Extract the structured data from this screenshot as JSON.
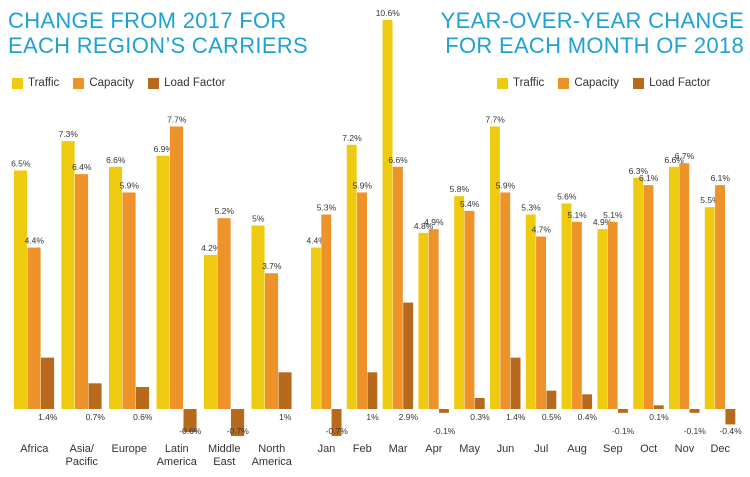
{
  "colors": {
    "traffic": "#eecb10",
    "capacity": "#ee922a",
    "load_factor": "#b86a1c",
    "title": "#1ea1d6"
  },
  "legend": [
    "Traffic",
    "Capacity",
    "Load Factor"
  ],
  "chart_data": [
    {
      "type": "bar",
      "title_lines": [
        "CHANGE FROM 2017 FOR",
        "EACH REGION’S CARRIERS"
      ],
      "categories": [
        [
          "Africa"
        ],
        [
          "Asia/",
          "Pacific"
        ],
        [
          "Europe"
        ],
        [
          "Latin",
          "America"
        ],
        [
          "Middle",
          "East"
        ],
        [
          "North",
          "America"
        ]
      ],
      "series": [
        {
          "name": "Traffic",
          "values": [
            6.5,
            7.3,
            6.6,
            6.9,
            4.2,
            5
          ],
          "labels": [
            "6.5%",
            "7.3%",
            "6.6%",
            "6.9%",
            "4.2%",
            "5%"
          ]
        },
        {
          "name": "Capacity",
          "values": [
            4.4,
            6.4,
            5.9,
            7.7,
            5.2,
            3.7
          ],
          "labels": [
            "4.4%",
            "6.4%",
            "5.9%",
            "7.7%",
            "5.2%",
            "3.7%"
          ]
        },
        {
          "name": "Load Factor",
          "values": [
            1.4,
            0.7,
            0.6,
            -0.6,
            -0.7,
            1
          ],
          "labels": [
            "1.4%",
            "0.7%",
            "0.6%",
            "-0.6%",
            "-0.7%",
            "1%"
          ]
        }
      ],
      "ylim": [
        -0.7,
        10.6
      ]
    },
    {
      "type": "bar",
      "title_lines": [
        "YEAR-OVER-YEAR CHANGE",
        "FOR EACH MONTH OF 2018"
      ],
      "categories": [
        [
          "Jan"
        ],
        [
          "Feb"
        ],
        [
          "Mar"
        ],
        [
          "Apr"
        ],
        [
          "May"
        ],
        [
          "Jun"
        ],
        [
          "Jul"
        ],
        [
          "Aug"
        ],
        [
          "Sep"
        ],
        [
          "Oct"
        ],
        [
          "Nov"
        ],
        [
          "Dec"
        ]
      ],
      "series": [
        {
          "name": "Traffic",
          "values": [
            4.4,
            7.2,
            10.6,
            4.8,
            5.8,
            7.7,
            5.3,
            5.6,
            4.9,
            6.3,
            6.6,
            5.5
          ],
          "labels": [
            "4.4%",
            "7.2%",
            "10.6%",
            "4.8%",
            "5.8%",
            "7.7%",
            "5.3%",
            "5.6%",
            "4.9%",
            "6.3%",
            "6.6%",
            "5.5%"
          ]
        },
        {
          "name": "Capacity",
          "values": [
            5.3,
            5.9,
            6.6,
            4.9,
            5.4,
            5.9,
            4.7,
            5.1,
            5.1,
            6.1,
            6.7,
            6.1
          ],
          "labels": [
            "5.3%",
            "5.9%",
            "6.6%",
            "4.9%",
            "5.4%",
            "5.9%",
            "4.7%",
            "5.1%",
            "5.1%",
            "6.1%",
            "6.7%",
            "6.1%"
          ]
        },
        {
          "name": "Load Factor",
          "values": [
            -0.7,
            1,
            2.9,
            -0.1,
            0.3,
            1.4,
            0.5,
            0.4,
            -0.1,
            0.1,
            -0.1,
            -0.4
          ],
          "labels": [
            "-0.7%",
            "1%",
            "2.9%",
            "-0.1%",
            "0.3%",
            "1.4%",
            "0.5%",
            "0.4%",
            "-0.1%",
            "0.1%",
            "-0.1%",
            "-0.4%"
          ]
        }
      ],
      "ylim": [
        -0.7,
        10.6
      ]
    }
  ]
}
